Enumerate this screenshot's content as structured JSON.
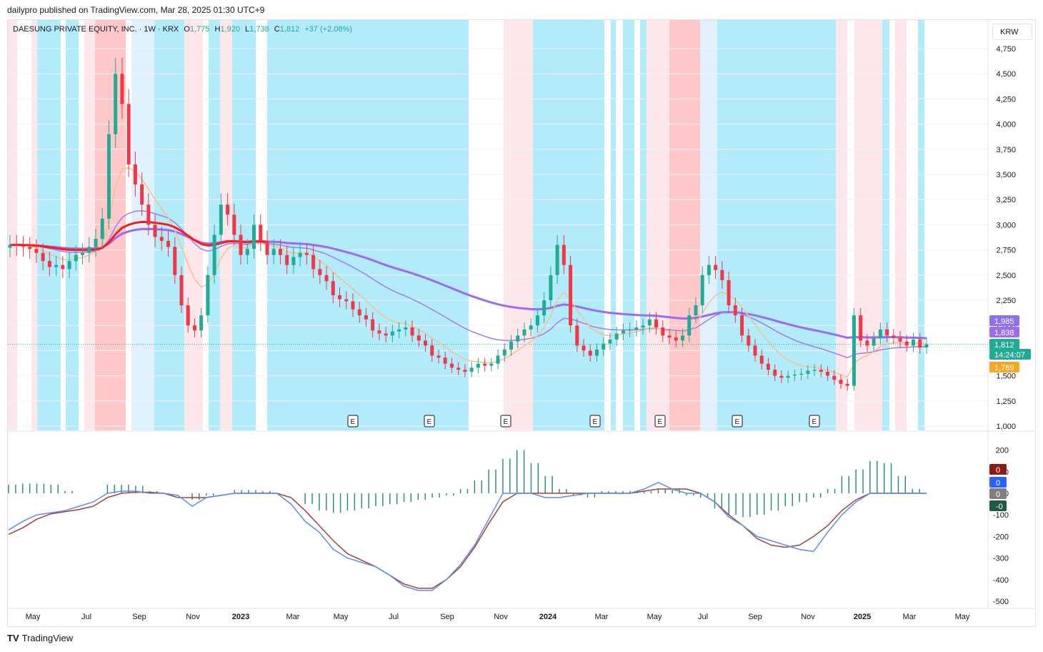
{
  "header": {
    "published": "dailypro published on TradingView.com, Mar 28, 2025 01:30 UTC+9"
  },
  "legend": {
    "symbol": "DAESUNG PRIVATE EQUITY, INC. · 1W · KRX",
    "o_label": "O",
    "o": "1,775",
    "h_label": "H",
    "h": "1,920",
    "l_label": "L",
    "l": "1,738",
    "c_label": "C",
    "c": "1,812",
    "change": "+37 (+2.08%)"
  },
  "currency_button": "KRW",
  "branding": "TradingView",
  "colors": {
    "up": "#22ab94",
    "down": "#f23645",
    "ema_slow": "#9b6cf0",
    "ema_mid": "#a07ef0",
    "ema_fast": "#f5c28a",
    "trend_line": "#ff1a1a",
    "macd": "#5b8def",
    "signal": "#a0443a",
    "hist": "#22896a",
    "band_bull": "#b2ebf9",
    "band_bull_light": "#dff1fd",
    "band_bear": "#ffc8c8",
    "band_bear_light": "#fde7ea"
  },
  "chart_data": {
    "type": "candlestick",
    "title": "DAESUNG PRIVATE EQUITY, INC. · 1W · KRX",
    "currency": "KRW",
    "price_axis": {
      "ylim": [
        1000,
        4750
      ],
      "ticks": [
        "4,750",
        "4,500",
        "4,250",
        "4,000",
        "3,750",
        "3,500",
        "3,250",
        "3,000",
        "2,750",
        "2,500",
        "2,250",
        "2,000",
        "1,750",
        "1,500",
        "1,250",
        "1,000"
      ],
      "tick_values": [
        4750,
        4500,
        4250,
        4000,
        3750,
        3500,
        3250,
        3000,
        2750,
        2500,
        2250,
        2000,
        1750,
        1500,
        1250,
        1000
      ]
    },
    "time_axis": [
      "May",
      "Jul",
      "Sep",
      "Nov",
      "2023",
      "Mar",
      "May",
      "Jul",
      "Sep",
      "Nov",
      "2024",
      "Mar",
      "May",
      "Jul",
      "Sep",
      "Nov",
      "2025",
      "Mar",
      "May"
    ],
    "time_axis_bold": [
      "2023",
      "2024",
      "2025"
    ],
    "price_labels": [
      {
        "text": "1,985",
        "value": 1985,
        "color": "#8e6ff0"
      },
      {
        "text": "1,838",
        "value": 1838,
        "color": "#9b6cf0"
      },
      {
        "text": "1,812",
        "value": 1812,
        "color": "#22ab94"
      },
      {
        "text": "14:24:07",
        "value": 1812,
        "color": "#22ab94"
      },
      {
        "text": "1,789",
        "value": 1789,
        "color": "#f5a623"
      }
    ],
    "earnings_marker": "E",
    "weekly_closes": [
      2800,
      2790,
      2780,
      2760,
      2720,
      2640,
      2580,
      2600,
      2560,
      2640,
      2700,
      2720,
      2780,
      2860,
      3060,
      3900,
      4500,
      4200,
      3600,
      3400,
      3200,
      3000,
      2880,
      2840,
      2780,
      2500,
      2200,
      2000,
      1950,
      2100,
      2500,
      2900,
      3200,
      3100,
      2900,
      2700,
      2760,
      3000,
      2840,
      2700,
      2760,
      2700,
      2600,
      2680,
      2720,
      2700,
      2560,
      2500,
      2440,
      2300,
      2260,
      2240,
      2160,
      2100,
      2060,
      1950,
      1920,
      1900,
      1940,
      1960,
      1980,
      1900,
      1850,
      1800,
      1700,
      1680,
      1620,
      1580,
      1560,
      1540,
      1580,
      1620,
      1600,
      1620,
      1700,
      1760,
      1840,
      1900,
      1960,
      2000,
      2100,
      2250,
      2500,
      2800,
      2600,
      2000,
      1800,
      1750,
      1700,
      1760,
      1820,
      1860,
      1920,
      1950,
      1960,
      1980,
      2000,
      2060,
      1980,
      1900,
      1880,
      1850,
      1900,
      2100,
      2200,
      2500,
      2600,
      2550,
      2450,
      2200,
      2100,
      1900,
      1800,
      1700,
      1620,
      1560,
      1500,
      1480,
      1500,
      1510,
      1520,
      1550,
      1560,
      1540,
      1500,
      1460,
      1420,
      1400,
      2100,
      1850,
      1800,
      1870,
      1960,
      1900,
      1880,
      1840,
      1800,
      1860,
      1780,
      1812
    ],
    "macd_axis": {
      "ylim": [
        -500,
        200
      ],
      "ticks": [
        "200",
        "100",
        "0",
        "-100",
        "-200",
        "-300",
        "-400",
        "-500"
      ],
      "tick_values": [
        200,
        100,
        0,
        -100,
        -200,
        -300,
        -400,
        -500
      ]
    },
    "macd_labels": [
      {
        "text": "0",
        "color": "#8b1a1a"
      },
      {
        "text": "0",
        "color": "#2962ff"
      },
      {
        "text": "0",
        "color": "#808080"
      },
      {
        "text": "-0",
        "color": "#1e5a46"
      }
    ],
    "macd_line": [
      -170,
      -130,
      -100,
      -90,
      -80,
      -60,
      -40,
      0,
      10,
      10,
      0,
      0,
      -10,
      -60,
      -20,
      -10,
      0,
      0,
      0,
      0,
      -50,
      -130,
      -180,
      -260,
      -300,
      -320,
      -340,
      -380,
      -430,
      -450,
      -450,
      -400,
      -330,
      -240,
      -120,
      0,
      0,
      0,
      -20,
      -20,
      -10,
      0,
      0,
      0,
      0,
      20,
      50,
      20,
      0,
      0,
      -40,
      -110,
      -150,
      -200,
      -220,
      -240,
      -260,
      -270,
      -180,
      -100,
      -40,
      0,
      0,
      0,
      0,
      0
    ],
    "signal_line": [
      -190,
      -160,
      -120,
      -95,
      -85,
      -75,
      -60,
      -20,
      0,
      5,
      5,
      0,
      -20,
      -20,
      -20,
      -10,
      0,
      0,
      0,
      0,
      -20,
      -80,
      -150,
      -220,
      -280,
      -310,
      -340,
      -380,
      -420,
      -440,
      -440,
      -400,
      -340,
      -250,
      -140,
      -40,
      0,
      0,
      0,
      0,
      0,
      0,
      0,
      0,
      0,
      10,
      20,
      20,
      20,
      0,
      -40,
      -100,
      -150,
      -210,
      -240,
      -250,
      -240,
      -200,
      -150,
      -80,
      -30,
      0,
      0,
      0,
      0,
      0
    ],
    "histogram": [
      40,
      45,
      45,
      40,
      10,
      0,
      0,
      40,
      40,
      35,
      10,
      0,
      0,
      -30,
      -10,
      0,
      15,
      15,
      10,
      0,
      0,
      -50,
      -80,
      -90,
      -80,
      -70,
      -60,
      -50,
      -40,
      -30,
      -20,
      -10,
      20,
      60,
      110,
      160,
      200,
      140,
      80,
      20,
      -10,
      -20,
      10,
      10,
      10,
      10,
      20,
      20,
      -10,
      -20,
      -70,
      -100,
      -110,
      -100,
      -80,
      -60,
      -40,
      -20,
      20,
      80,
      110,
      150,
      140,
      80,
      20,
      0
    ]
  }
}
